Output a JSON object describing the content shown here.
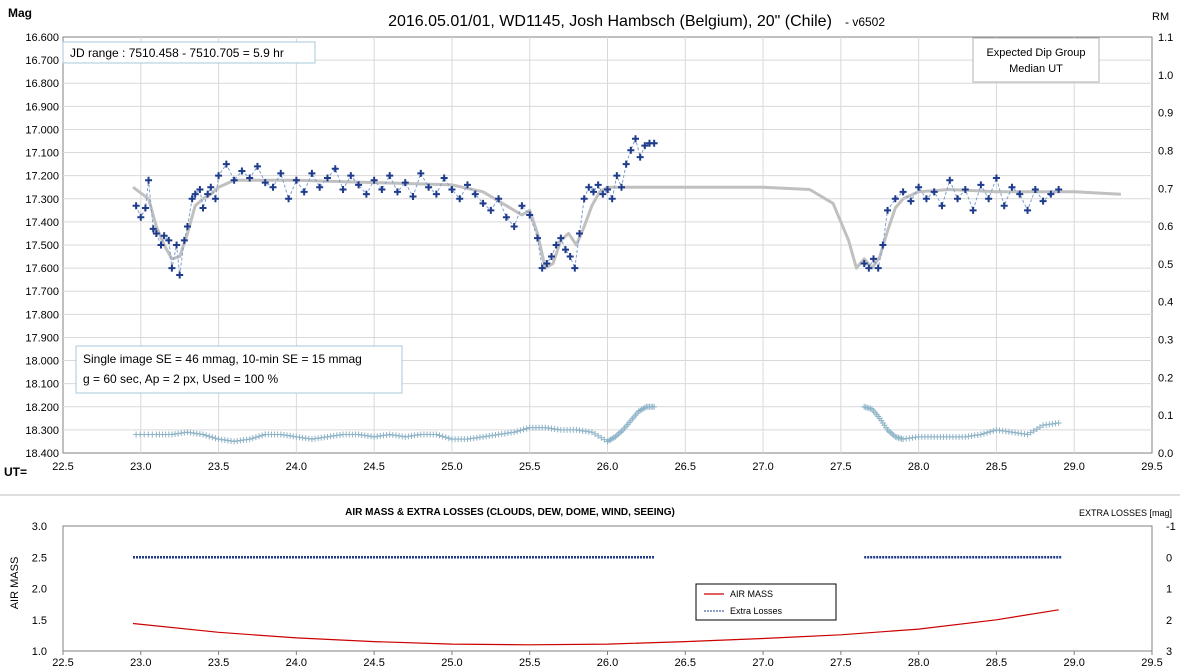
{
  "chart_data": [
    {
      "type": "scatter",
      "title": "2016.05.01/01,  WD1145, Josh Hambsch  (Belgium), 20\" (Chile)",
      "version": "- v6502",
      "ylabel_left": "Mag",
      "ylabel_right": "RM",
      "xlabel": "UT=",
      "xlim": [
        22.5,
        29.5
      ],
      "ylim_left": [
        16.6,
        18.4
      ],
      "ylim_right": [
        0.0,
        1.1
      ],
      "x_ticks": [
        "22.5",
        "23.0",
        "23.5",
        "24.0",
        "24.5",
        "25.0",
        "25.5",
        "26.0",
        "26.5",
        "27.0",
        "27.5",
        "28.0",
        "28.5",
        "29.0",
        "29.5"
      ],
      "y_ticks_left": [
        "16.600",
        "16.700",
        "16.800",
        "16.900",
        "17.000",
        "17.100",
        "17.200",
        "17.300",
        "17.400",
        "17.500",
        "17.600",
        "17.700",
        "17.800",
        "17.900",
        "18.000",
        "18.100",
        "18.200",
        "18.300",
        "18.400"
      ],
      "y_ticks_right": [
        "1.1",
        "1.0",
        "0.9",
        "0.8",
        "0.7",
        "0.6",
        "0.5",
        "0.4",
        "0.3",
        "0.2",
        "0.1",
        "0.0"
      ],
      "grid": true,
      "annotations": {
        "jd_range": "JD range  : 7510.458  - 7510.705  = 5.9 hr",
        "dip_group_line1": "Expected Dip Group",
        "dip_group_line2": "Median UT",
        "stats_line1": "Single image SE = 46 mmag, 10-min SE = 15 mmag",
        "stats_line2": "g = 60 sec, Ap = 2 px, Used = 100 %"
      },
      "series": [
        {
          "kind": "model",
          "color": "#c0c0c0",
          "x": [
            22.95,
            23.05,
            23.1,
            23.15,
            23.2,
            23.25,
            23.3,
            23.35,
            23.4,
            23.45,
            23.5,
            23.6,
            23.8,
            24.0,
            24.5,
            25.0,
            25.2,
            25.35,
            25.45,
            25.5,
            25.55,
            25.6,
            25.65,
            25.7,
            25.75,
            25.8,
            25.85,
            25.9,
            25.95,
            26.0,
            26.1,
            26.5,
            27.0,
            27.3,
            27.45,
            27.55,
            27.6,
            27.65,
            27.7,
            27.75,
            27.8,
            27.85,
            27.9,
            28.0,
            28.2,
            28.5,
            29.0,
            29.3
          ],
          "y": [
            17.25,
            17.3,
            17.42,
            17.5,
            17.56,
            17.55,
            17.45,
            17.33,
            17.3,
            17.28,
            17.25,
            17.22,
            17.22,
            17.22,
            17.23,
            17.24,
            17.27,
            17.33,
            17.37,
            17.35,
            17.45,
            17.6,
            17.58,
            17.48,
            17.45,
            17.5,
            17.42,
            17.33,
            17.27,
            17.25,
            17.25,
            17.25,
            17.25,
            17.26,
            17.32,
            17.48,
            17.6,
            17.56,
            17.6,
            17.55,
            17.44,
            17.34,
            17.3,
            17.27,
            17.26,
            17.27,
            17.27,
            17.28
          ]
        },
        {
          "kind": "measured",
          "color": "#1f3b8c",
          "x": [
            22.97,
            23.0,
            23.03,
            23.05,
            23.08,
            23.1,
            23.13,
            23.15,
            23.18,
            23.2,
            23.23,
            23.25,
            23.28,
            23.3,
            23.33,
            23.35,
            23.38,
            23.4,
            23.43,
            23.45,
            23.48,
            23.5,
            23.55,
            23.6,
            23.65,
            23.7,
            23.75,
            23.8,
            23.85,
            23.9,
            23.95,
            24.0,
            24.05,
            24.1,
            24.15,
            24.2,
            24.25,
            24.3,
            24.35,
            24.4,
            24.45,
            24.5,
            24.55,
            24.6,
            24.65,
            24.7,
            24.75,
            24.8,
            24.85,
            24.9,
            24.95,
            25.0,
            25.05,
            25.1,
            25.15,
            25.2,
            25.25,
            25.3,
            25.35,
            25.4,
            25.45,
            25.5,
            25.55,
            25.58,
            25.61,
            25.64,
            25.67,
            25.7,
            25.73,
            25.76,
            25.79,
            25.82,
            25.85,
            25.88,
            25.91,
            25.94,
            25.97,
            26.0,
            26.03,
            26.06,
            26.09,
            26.12,
            26.15,
            26.18,
            26.21,
            26.24,
            26.27,
            26.3,
            27.65,
            27.68,
            27.71,
            27.74,
            27.77,
            27.8,
            27.85,
            27.9,
            27.95,
            28.0,
            28.05,
            28.1,
            28.15,
            28.2,
            28.25,
            28.3,
            28.35,
            28.4,
            28.45,
            28.5,
            28.55,
            28.6,
            28.65,
            28.7,
            28.75,
            28.8,
            28.85,
            28.9
          ],
          "y": [
            17.33,
            17.38,
            17.34,
            17.22,
            17.43,
            17.45,
            17.5,
            17.46,
            17.48,
            17.6,
            17.5,
            17.63,
            17.48,
            17.42,
            17.3,
            17.28,
            17.26,
            17.34,
            17.28,
            17.25,
            17.3,
            17.2,
            17.15,
            17.22,
            17.18,
            17.21,
            17.16,
            17.23,
            17.25,
            17.19,
            17.3,
            17.22,
            17.27,
            17.19,
            17.25,
            17.21,
            17.17,
            17.26,
            17.2,
            17.24,
            17.28,
            17.22,
            17.26,
            17.2,
            17.27,
            17.23,
            17.29,
            17.19,
            17.25,
            17.28,
            17.21,
            17.26,
            17.3,
            17.24,
            17.28,
            17.32,
            17.35,
            17.3,
            17.38,
            17.42,
            17.33,
            17.37,
            17.47,
            17.6,
            17.58,
            17.55,
            17.5,
            17.47,
            17.52,
            17.55,
            17.6,
            17.45,
            17.3,
            17.25,
            17.27,
            17.24,
            17.28,
            17.26,
            17.3,
            17.2,
            17.25,
            17.15,
            17.09,
            17.04,
            17.12,
            17.07,
            17.06,
            17.06,
            17.58,
            17.6,
            17.56,
            17.6,
            17.5,
            17.35,
            17.3,
            17.27,
            17.31,
            17.25,
            17.3,
            17.27,
            17.33,
            17.22,
            17.3,
            17.26,
            17.35,
            17.24,
            17.3,
            17.21,
            17.33,
            17.25,
            17.28,
            17.35,
            17.26,
            17.31,
            17.28,
            17.26
          ]
        },
        {
          "kind": "reference",
          "color": "#8fb4c8",
          "x": [
            22.97,
            23.1,
            23.2,
            23.3,
            23.4,
            23.5,
            23.6,
            23.7,
            23.8,
            23.9,
            24.0,
            24.1,
            24.2,
            24.3,
            24.4,
            24.5,
            24.6,
            24.7,
            24.8,
            24.9,
            25.0,
            25.1,
            25.2,
            25.3,
            25.4,
            25.5,
            25.6,
            25.7,
            25.8,
            25.9,
            26.0,
            26.05,
            26.1,
            26.15,
            26.2,
            26.25,
            26.3,
            27.65,
            27.7,
            27.75,
            27.8,
            27.85,
            27.9,
            28.0,
            28.1,
            28.2,
            28.3,
            28.4,
            28.5,
            28.6,
            28.7,
            28.8,
            28.9
          ],
          "y": [
            18.32,
            18.32,
            18.32,
            18.31,
            18.32,
            18.34,
            18.35,
            18.34,
            18.32,
            18.32,
            18.33,
            18.34,
            18.33,
            18.32,
            18.32,
            18.33,
            18.32,
            18.33,
            18.32,
            18.32,
            18.34,
            18.34,
            18.33,
            18.32,
            18.31,
            18.29,
            18.29,
            18.3,
            18.3,
            18.31,
            18.35,
            18.33,
            18.3,
            18.26,
            18.22,
            18.2,
            18.2,
            18.2,
            18.21,
            18.25,
            18.3,
            18.33,
            18.34,
            18.33,
            18.33,
            18.33,
            18.33,
            18.32,
            18.3,
            18.31,
            18.32,
            18.28,
            18.27
          ]
        }
      ]
    },
    {
      "type": "line",
      "title": "AIR MASS & EXTRA LOSSES (CLOUDS, DEW, DOME, WIND, SEEING)",
      "ylabel_left": "AIR MASS",
      "ylabel_right": "EXTRA LOSSES [mag]",
      "xlim": [
        22.5,
        29.5
      ],
      "ylim_left": [
        1.0,
        3.0
      ],
      "ylim_right": [
        3,
        -1
      ],
      "x_ticks": [
        "22.5",
        "23.0",
        "23.5",
        "24.0",
        "24.5",
        "25.0",
        "25.5",
        "26.0",
        "26.5",
        "27.0",
        "27.5",
        "28.0",
        "28.5",
        "29.0",
        "29.5"
      ],
      "y_ticks_left": [
        "3.0",
        "2.5",
        "2.0",
        "1.5",
        "1.0"
      ],
      "y_ticks_right": [
        "-1",
        "0",
        "1",
        "2",
        "3"
      ],
      "legend": {
        "placement": "center-right",
        "entries": [
          "AIR MASS",
          "Extra Losses"
        ]
      },
      "series": [
        {
          "name": "AIR MASS",
          "color": "#cc0000",
          "x": [
            22.95,
            23.5,
            24.0,
            24.5,
            25.0,
            25.5,
            26.0,
            26.5,
            27.0,
            27.5,
            28.0,
            28.5,
            28.9
          ],
          "y": [
            1.44,
            1.3,
            1.21,
            1.15,
            1.11,
            1.1,
            1.11,
            1.15,
            1.2,
            1.26,
            1.35,
            1.5,
            1.66
          ]
        },
        {
          "name": "Extra Losses",
          "color": "#1f3b8c",
          "segments": [
            {
              "x": [
                22.95,
                26.3
              ],
              "y": [
                0.0,
                0.0
              ]
            },
            {
              "x": [
                27.65,
                28.92
              ],
              "y": [
                0.0,
                0.0
              ]
            }
          ]
        }
      ]
    }
  ]
}
